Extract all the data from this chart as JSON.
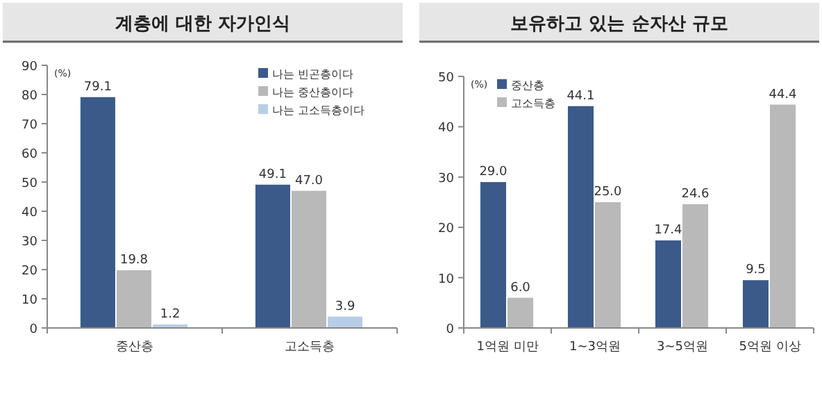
{
  "chart_data": [
    {
      "type": "bar",
      "title": "계층에 대한 자가인식",
      "ylabel": "(%)",
      "categories": [
        "중산층",
        "고소득층"
      ],
      "series": [
        {
          "name": "나는 빈곤층이다",
          "color": "#3b5a8a",
          "values": [
            79.1,
            49.1
          ],
          "value_labels": [
            "79.1",
            "49.1"
          ]
        },
        {
          "name": "나는 중산층이다",
          "color": "#b9b9b9",
          "values": [
            19.8,
            47.0
          ],
          "value_labels": [
            "19.8",
            "47.0"
          ]
        },
        {
          "name": "나는 고소득층이다",
          "color": "#b8cde6",
          "values": [
            1.2,
            3.9
          ],
          "value_labels": [
            "1.2",
            "3.9"
          ]
        }
      ],
      "ylim": [
        0,
        90
      ],
      "yticks": [
        0,
        10,
        20,
        30,
        40,
        50,
        60,
        70,
        80,
        90
      ],
      "legend": "top right",
      "grid": false
    },
    {
      "type": "bar",
      "title": "보유하고 있는 순자산 규모",
      "ylabel": "(%)",
      "categories": [
        "1억원 미만",
        "1~3억원",
        "3~5억원",
        "5억원 이상"
      ],
      "series": [
        {
          "name": "중산층",
          "color": "#3b5a8a",
          "values": [
            29.0,
            44.1,
            17.4,
            9.5
          ],
          "value_labels": [
            "29.0",
            "44.1",
            "17.4",
            "9.5"
          ]
        },
        {
          "name": "고소득층",
          "color": "#b9b9b9",
          "values": [
            6.0,
            25.0,
            24.6,
            44.4
          ],
          "value_labels": [
            "6.0",
            "25.0",
            "24.6",
            "44.4"
          ]
        }
      ],
      "ylim": [
        0,
        50
      ],
      "yticks": [
        0,
        10,
        20,
        30,
        40,
        50
      ],
      "legend": "top left",
      "grid": false
    }
  ]
}
